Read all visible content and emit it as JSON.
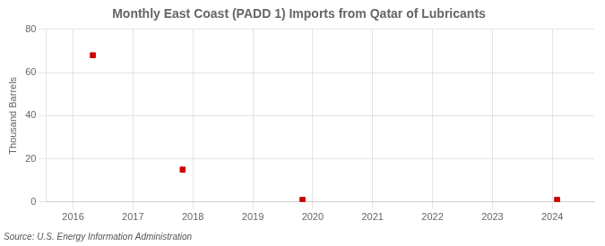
{
  "chart_data": {
    "type": "scatter",
    "title": "Monthly East Coast (PADD 1) Imports from Qatar of Lubricants",
    "ylabel": "Thousand Barrels",
    "source": "Source: U.S. Energy Information Administration",
    "x": [
      2016.33,
      2017.83,
      2019.83,
      2024.08
    ],
    "values": [
      68,
      15,
      1,
      1
    ],
    "color": "#cc0000",
    "marker": "square",
    "xlim": [
      2015.55,
      2024.7
    ],
    "xticks": [
      2016,
      2017,
      2018,
      2019,
      2020,
      2021,
      2022,
      2023,
      2024
    ],
    "ylim": [
      0,
      80
    ],
    "yticks": [
      0,
      20,
      40,
      60,
      80
    ],
    "grid": true
  }
}
